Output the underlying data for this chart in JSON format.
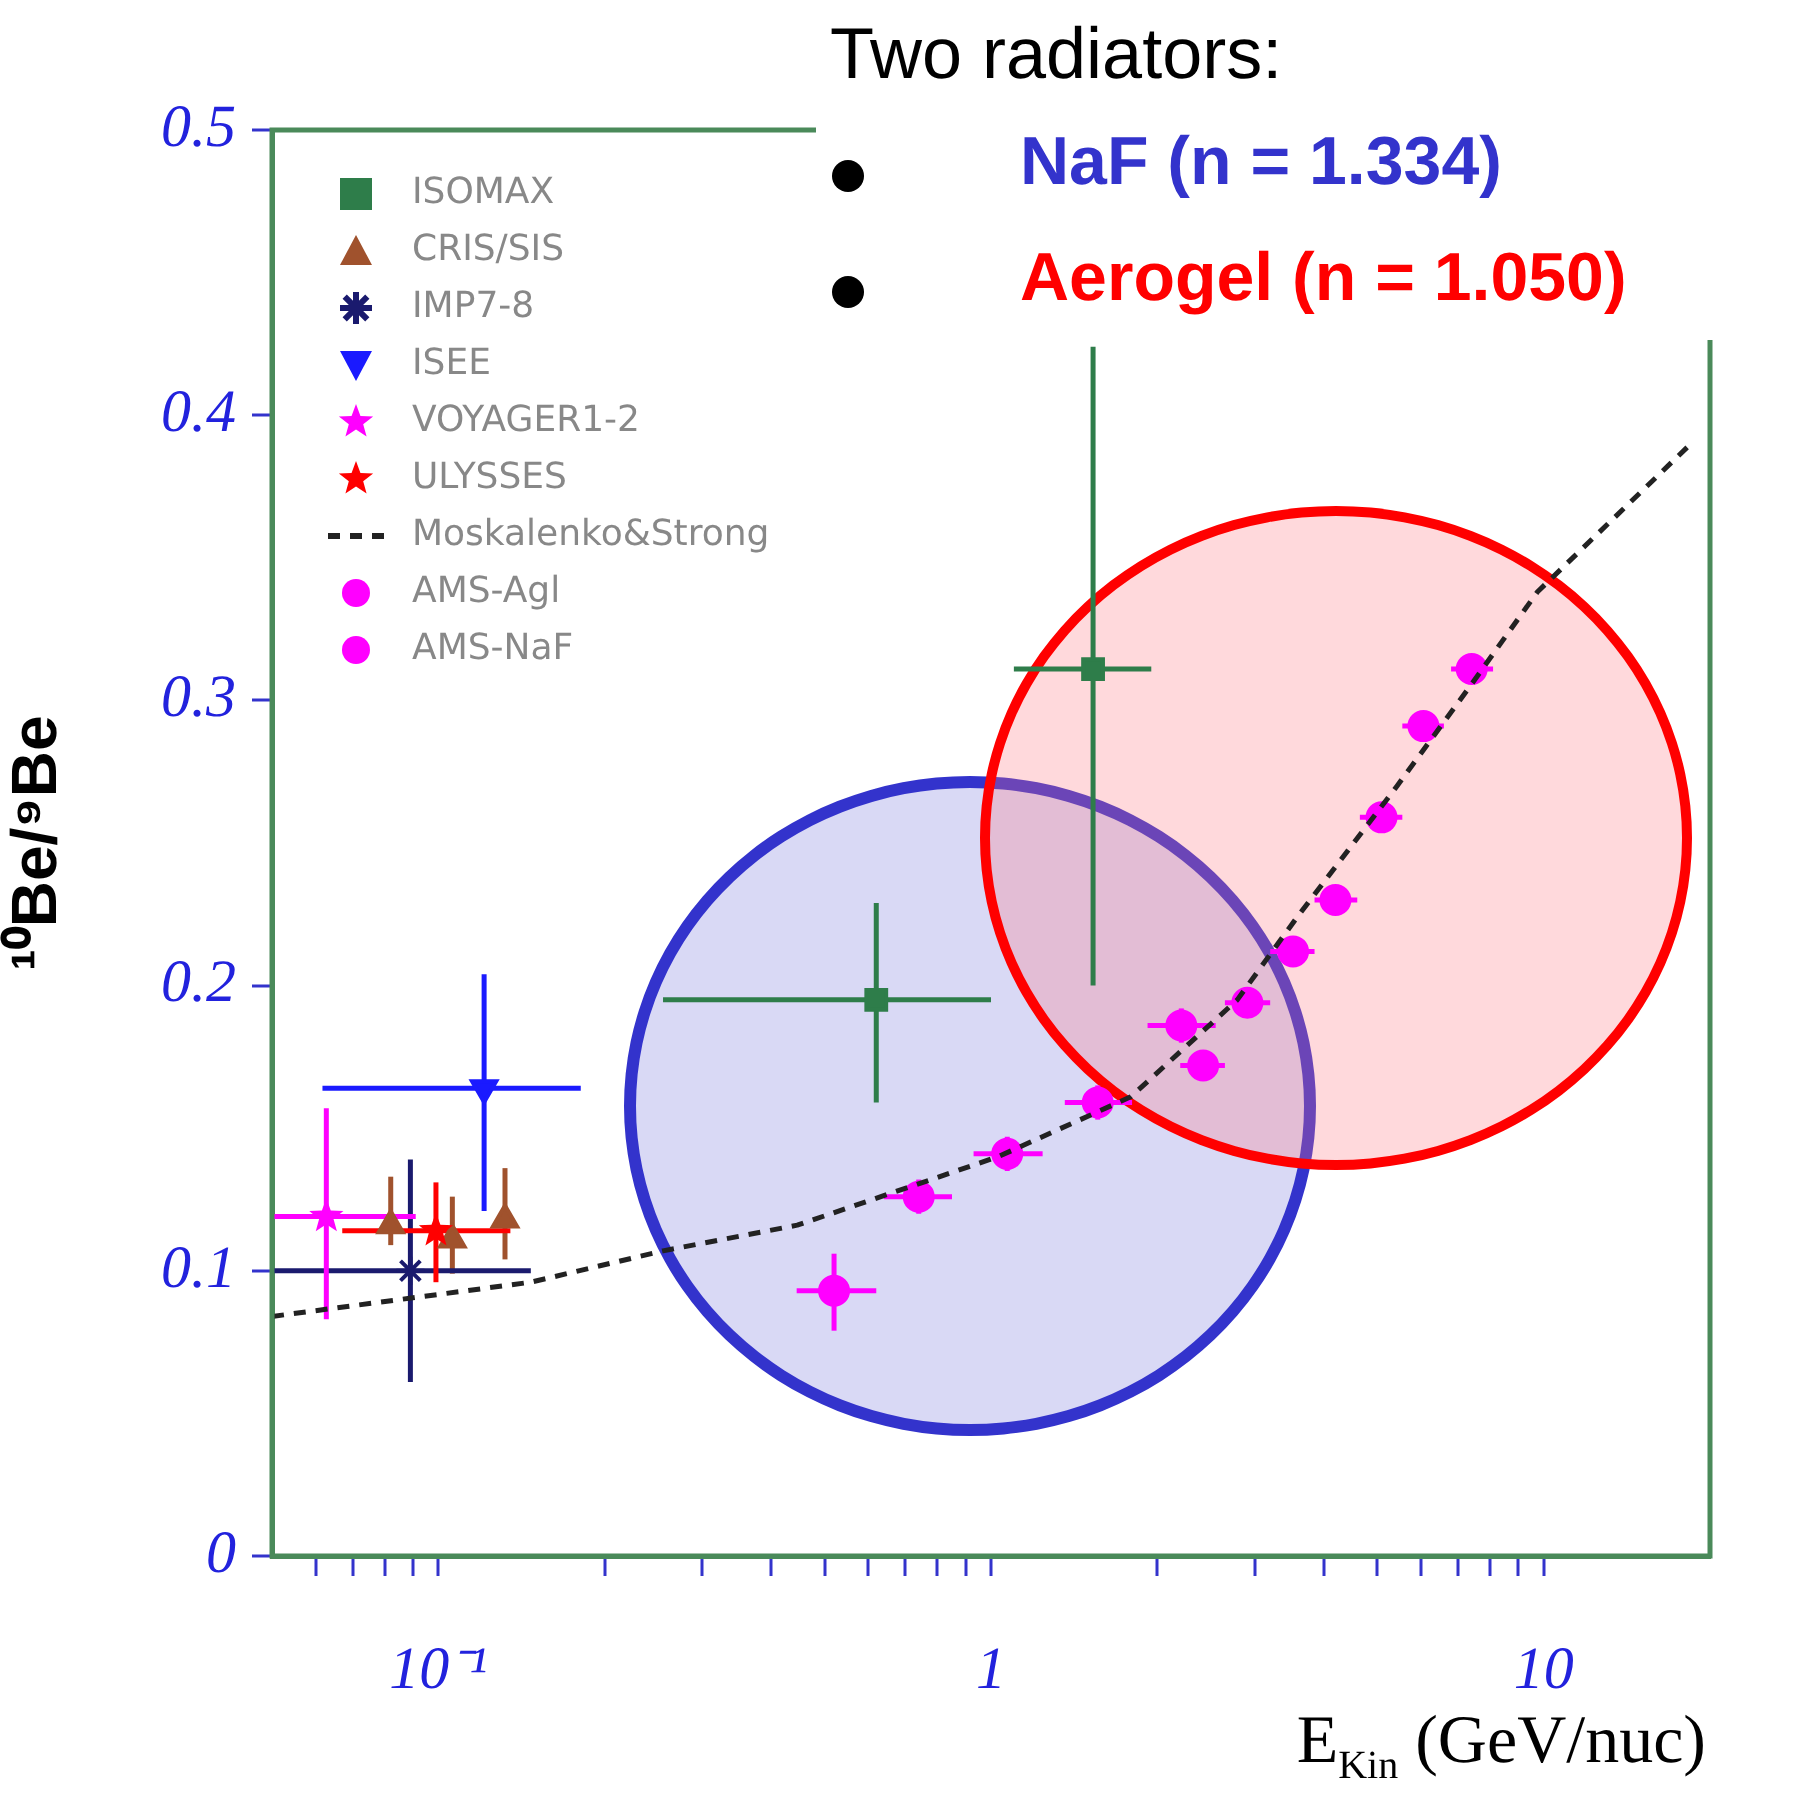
{
  "chart_data": {
    "type": "scatter",
    "xlabel": "E$_{Kin}$ (GeV/nuc)",
    "ylabel": "¹⁰Be/⁹Be",
    "log": "x",
    "xlim": [
      0.05,
      20
    ],
    "xticks": [
      {
        "value": 0.06,
        "label": null
      },
      {
        "value": 0.07,
        "label": null
      },
      {
        "value": 0.08,
        "label": null
      },
      {
        "value": 0.09,
        "label": null
      },
      {
        "value": 0.1,
        "label": "10⁻¹"
      },
      {
        "value": 0.2,
        "label": null
      },
      {
        "value": 0.3,
        "label": null
      },
      {
        "value": 0.4,
        "label": null
      },
      {
        "value": 0.5,
        "label": null
      },
      {
        "value": 0.6,
        "label": null
      },
      {
        "value": 0.7,
        "label": null
      },
      {
        "value": 0.8,
        "label": null
      },
      {
        "value": 0.9,
        "label": null
      },
      1,
      {
        "value": 2,
        "label": null
      },
      {
        "value": 3,
        "label": null
      },
      {
        "value": 4,
        "label": null
      },
      {
        "value": 5,
        "label": null
      },
      {
        "value": 6,
        "label": null
      },
      {
        "value": 7,
        "label": null
      },
      {
        "value": 8,
        "label": null
      },
      {
        "value": 9,
        "label": null
      },
      10
    ],
    "ylim": [
      0,
      0.5
    ],
    "yticks": [
      0,
      0.1,
      0.2,
      0.3,
      0.4,
      0.5
    ],
    "grid": false,
    "legend": "top left",
    "annotations": [
      "Two radiators:",
      "NaF (n = 1.334)",
      "Aerogel (n = 1.050)"
    ],
    "series": [
      {
        "name": "ISOMAX",
        "color": "#2e7d4a",
        "marker": "square",
        "x": [
          0.62,
          1.53
        ],
        "values": [
          0.195,
          0.311
        ],
        "xerrors": [
          [
            0.255,
            1.0
          ],
          [
            1.1,
            1.95
          ]
        ],
        "errors": [
          [
            0.159,
            0.229
          ],
          [
            0.2,
            0.424
          ]
        ]
      },
      {
        "name": "CRIS/SIS",
        "color": "#a0522d",
        "marker": "triangle",
        "x": [
          0.082,
          0.106,
          0.132
        ],
        "values": [
          0.116,
          0.111,
          0.118
        ],
        "errors": [
          [
            0.109,
            0.133
          ],
          [
            0.099,
            0.126
          ],
          [
            0.104,
            0.136
          ]
        ]
      },
      {
        "name": "IMP7-8",
        "color": "#1a1a6e",
        "marker": "cross",
        "x": [
          0.089
        ],
        "values": [
          0.1
        ],
        "xerrors": [
          [
            0.05,
            0.147
          ]
        ],
        "errors": [
          [
            0.061,
            0.139
          ]
        ]
      },
      {
        "name": "ISEE",
        "color": "#1a1aff",
        "marker": "triangle-down",
        "x": [
          0.121
        ],
        "values": [
          0.164
        ],
        "xerrors": [
          [
            0.0617,
            0.181
          ]
        ],
        "errors": [
          [
            0.121,
            0.204
          ]
        ]
      },
      {
        "name": "VOYAGER1-2",
        "color": "#ff00ff",
        "marker": "star",
        "x": [
          0.0627
        ],
        "values": [
          0.119
        ],
        "xerrors": [
          [
            0.05,
            0.091
          ]
        ],
        "errors": [
          [
            0.083,
            0.157
          ]
        ]
      },
      {
        "name": "ULYSSES",
        "color": "#ff0000",
        "marker": "star",
        "x": [
          0.099
        ],
        "values": [
          0.114
        ],
        "xerrors": [
          [
            0.067,
            0.135
          ]
        ],
        "errors": [
          [
            0.096,
            0.131
          ]
        ]
      },
      {
        "name": "Moskalenko&Strong",
        "type": "line",
        "color": "#222222",
        "marker": "none",
        "line_style": "dashed",
        "x": [
          0.05,
          0.147,
          0.255,
          0.446,
          1.03,
          1.79,
          2.79,
          3.58,
          5.43,
          7.3,
          9.74,
          18.7
        ],
        "values": [
          0.084,
          0.096,
          0.107,
          0.116,
          0.14,
          0.161,
          0.195,
          0.224,
          0.27,
          0.304,
          0.338,
          0.391
        ]
      },
      {
        "name": "AMS-Agl",
        "color": "#ff00ff",
        "marker": "circle",
        "x": [
          2.42,
          2.91,
          3.52,
          4.2,
          5.09,
          6.06,
          7.41
        ],
        "values": [
          0.172,
          0.194,
          0.212,
          0.23,
          0.259,
          0.291,
          0.311
        ],
        "xerrors": [
          [
            2.2,
            2.65
          ],
          [
            2.65,
            3.2
          ],
          [
            3.2,
            3.85
          ],
          [
            3.85,
            4.6
          ],
          [
            4.65,
            5.55
          ],
          [
            5.55,
            6.6
          ],
          [
            6.8,
            8.1
          ]
        ]
      },
      {
        "name": "AMS-NaF",
        "color": "#ff00ff",
        "marker": "circle",
        "x": [
          0.52,
          0.74,
          1.07,
          1.56,
          2.21
        ],
        "values": [
          0.093,
          0.126,
          0.141,
          0.159,
          0.186
        ],
        "xerrors": [
          [
            0.445,
            0.62
          ],
          [
            0.64,
            0.85
          ],
          [
            0.93,
            1.24
          ],
          [
            1.36,
            1.8
          ],
          [
            1.92,
            2.55
          ]
        ],
        "errors": [
          [
            0.079,
            0.106
          ],
          [
            0.12,
            0.132
          ],
          [
            0.135,
            0.147
          ],
          [
            0.153,
            0.165
          ],
          [
            0.18,
            0.192
          ]
        ]
      }
    ]
  }
}
